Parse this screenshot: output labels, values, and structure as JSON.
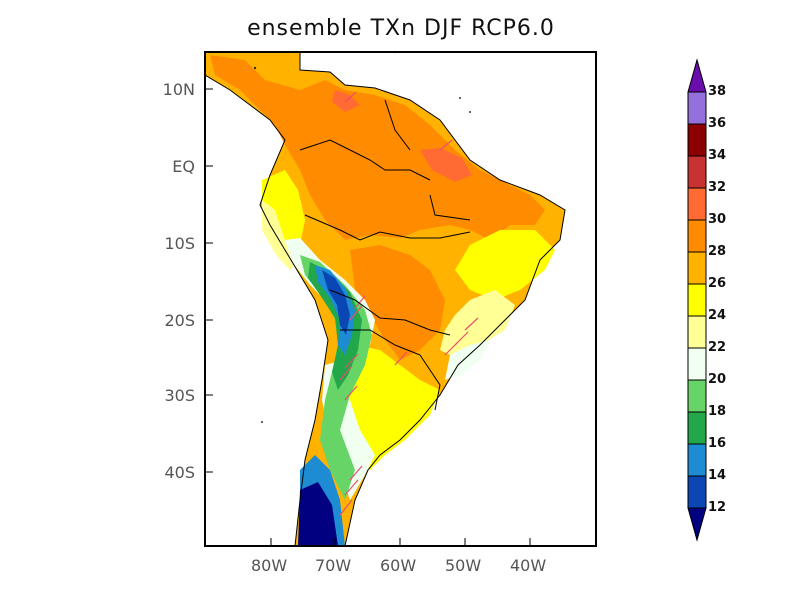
{
  "title": "ensemble TXn DJF RCP6.0",
  "map": {
    "lat_labels": [
      "10N",
      "EQ",
      "10S",
      "20S",
      "30S",
      "40S"
    ],
    "lon_labels": [
      "80W",
      "70W",
      "60W",
      "50W",
      "40W"
    ]
  },
  "colorbar": {
    "labels": [
      "38",
      "36",
      "34",
      "32",
      "30",
      "28",
      "26",
      "24",
      "22",
      "20",
      "18",
      "16",
      "14",
      "12"
    ],
    "colors": [
      "#6a0dad",
      "#9370db",
      "#8b0000",
      "#c83232",
      "#ff6b32",
      "#ff8c00",
      "#ffb300",
      "#ffff00",
      "#ffff96",
      "#f0fff0",
      "#66d466",
      "#22a84a",
      "#1e8cd2",
      "#0a46b4",
      "#000080"
    ]
  }
}
